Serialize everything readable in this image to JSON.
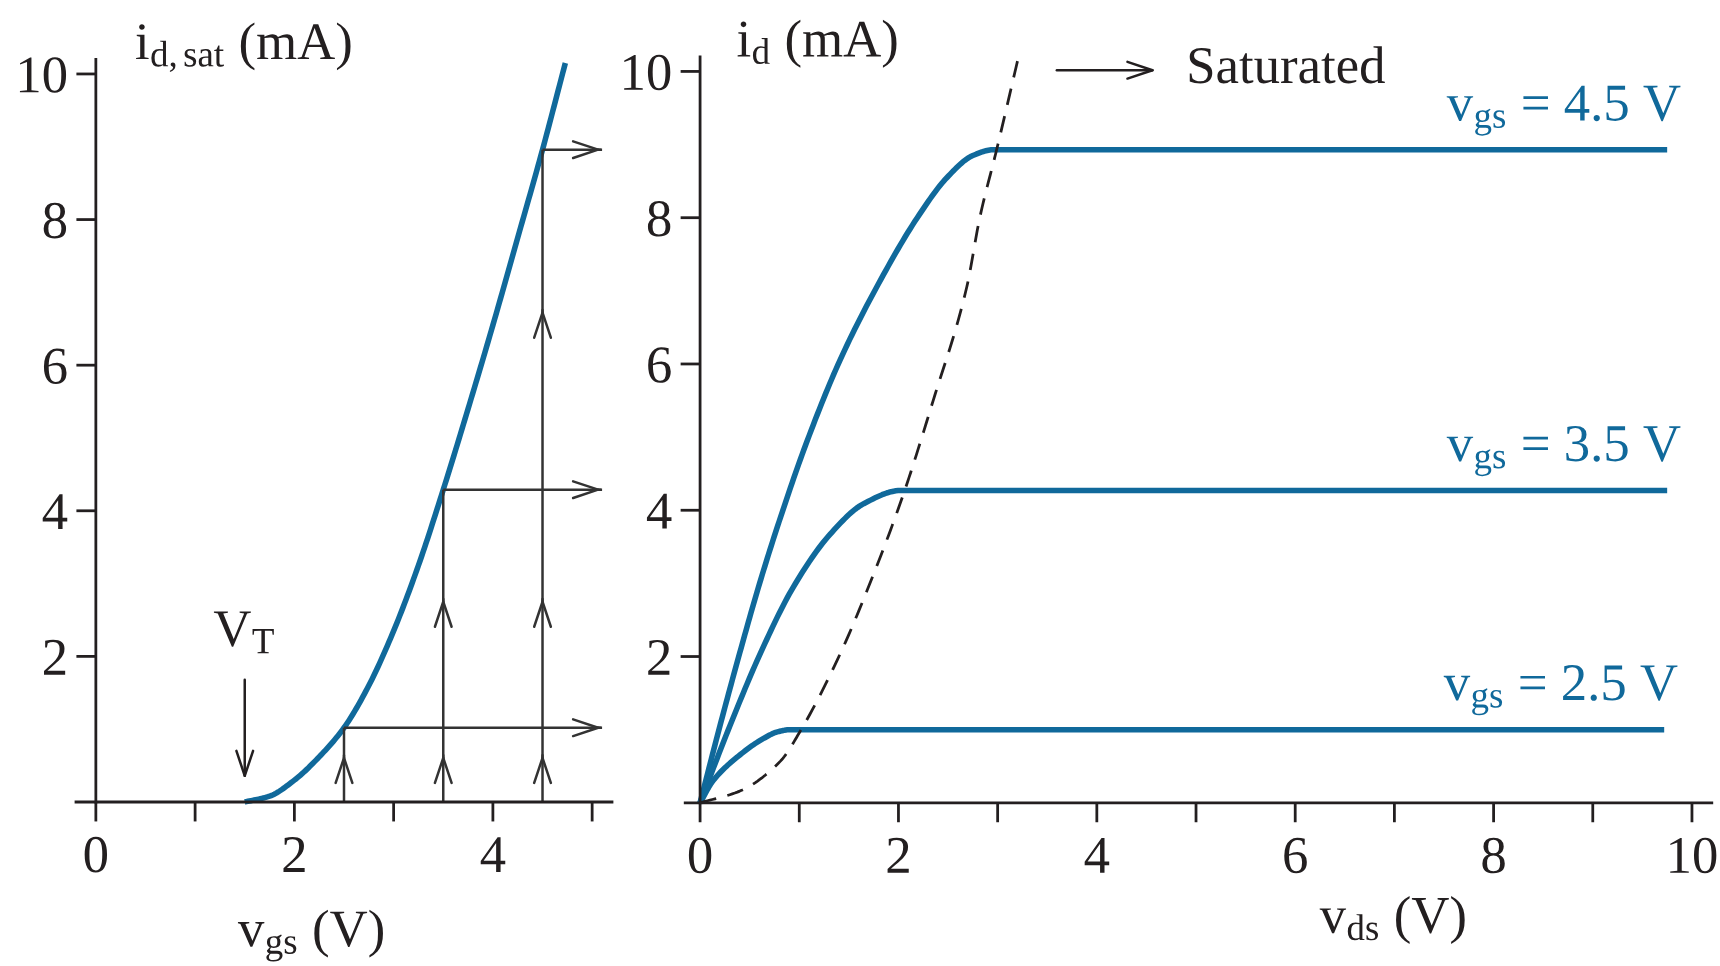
{
  "chart_data": [
    {
      "type": "line",
      "xlabel": "v$_{gs}$ (V)",
      "ylabel": "i$_{d,sat}$ (mA)",
      "xlim": [
        -0.2,
        5.2
      ],
      "ylim": [
        0,
        10.2
      ],
      "xticks": [
        0,
        {
          "value": 1,
          "label": null
        },
        2,
        {
          "value": 3,
          "label": null
        },
        4,
        {
          "value": 5,
          "label": null
        }
      ],
      "yticks": [
        2,
        4,
        6,
        8,
        10
      ],
      "annotations": [
        {
          "text": "V$_{T}$",
          "x": 1.5,
          "y": 0
        }
      ],
      "series": [
        {
          "color": "#10699b",
          "x": [
            1.5,
            1.75,
            2.0,
            2.25,
            2.5,
            2.75,
            3.0,
            3.25,
            3.5,
            3.75,
            4.0,
            4.25,
            4.5,
            4.73
          ],
          "values": [
            0,
            0.08,
            0.3,
            0.62,
            1.02,
            1.6,
            2.35,
            3.25,
            4.29,
            5.4,
            6.55,
            7.75,
            8.96,
            10.15
          ]
        }
      ],
      "ref_lines": [
        {
          "axis": "x",
          "value": 2.5,
          "color": "#333333"
        },
        {
          "axis": "x",
          "value": 3.5,
          "color": "#333333"
        },
        {
          "axis": "x",
          "value": 4.5,
          "color": "#333333"
        },
        {
          "axis": "y",
          "value": 1.02,
          "color": "#333333"
        },
        {
          "axis": "y",
          "value": 4.29,
          "color": "#333333"
        },
        {
          "axis": "y",
          "value": 8.96,
          "color": "#333333"
        }
      ]
    },
    {
      "type": "line",
      "xlabel": "v$_{ds}$ (V)",
      "ylabel": "i$_{d}$ (mA)",
      "xlim": [
        -0.15,
        10.2
      ],
      "ylim": [
        0,
        10.2
      ],
      "xticks": [
        0,
        {
          "value": 1,
          "label": null
        },
        2,
        {
          "value": 3,
          "label": null
        },
        4,
        {
          "value": 5,
          "label": null
        },
        6,
        {
          "value": 7,
          "label": null
        },
        8,
        {
          "value": 9,
          "label": null
        },
        10
      ],
      "yticks": [
        2,
        4,
        6,
        8,
        10
      ],
      "annotations": [
        "Saturated"
      ],
      "series": [
        {
          "name": "v$_{gs}$ = 4.5 V",
          "color": "#10699b",
          "x": [
            0,
            0.2,
            0.4,
            0.6,
            0.81,
            1.08,
            1.41,
            1.8,
            2.19,
            2.49,
            2.75,
            2.96,
            9.75
          ],
          "values": [
            0,
            1.05,
            2.05,
            3.0,
            3.9,
            4.95,
            6.05,
            7.1,
            8.0,
            8.55,
            8.85,
            8.93,
            8.93
          ]
        },
        {
          "name": "v$_{gs}$ = 3.5 V",
          "color": "#10699b",
          "x": [
            0,
            0.3,
            0.61,
            0.94,
            1.31,
            1.65,
            2.02,
            9.75
          ],
          "values": [
            0,
            1.05,
            2.05,
            2.95,
            3.67,
            4.09,
            4.27,
            4.27
          ]
        },
        {
          "name": "v$_{gs}$ = 2.5 V",
          "color": "#10699b",
          "x": [
            0,
            0.13,
            0.37,
            0.64,
            0.78,
            0.91,
            9.72
          ],
          "values": [
            0,
            0.3,
            0.62,
            0.88,
            0.97,
            1.0,
            1.0
          ]
        },
        {
          "color": "#231f20",
          "line_style": "dashed",
          "x": [
            0,
            0.4,
            0.81,
            1.01,
            1.41,
            1.75,
            2.05,
            2.35,
            2.69,
            2.82,
            2.99,
            3.2
          ],
          "values": [
            0,
            0.16,
            0.57,
            0.98,
            2.03,
            3.13,
            4.22,
            5.5,
            7.06,
            8.0,
            8.93,
            10.14
          ]
        }
      ]
    }
  ]
}
